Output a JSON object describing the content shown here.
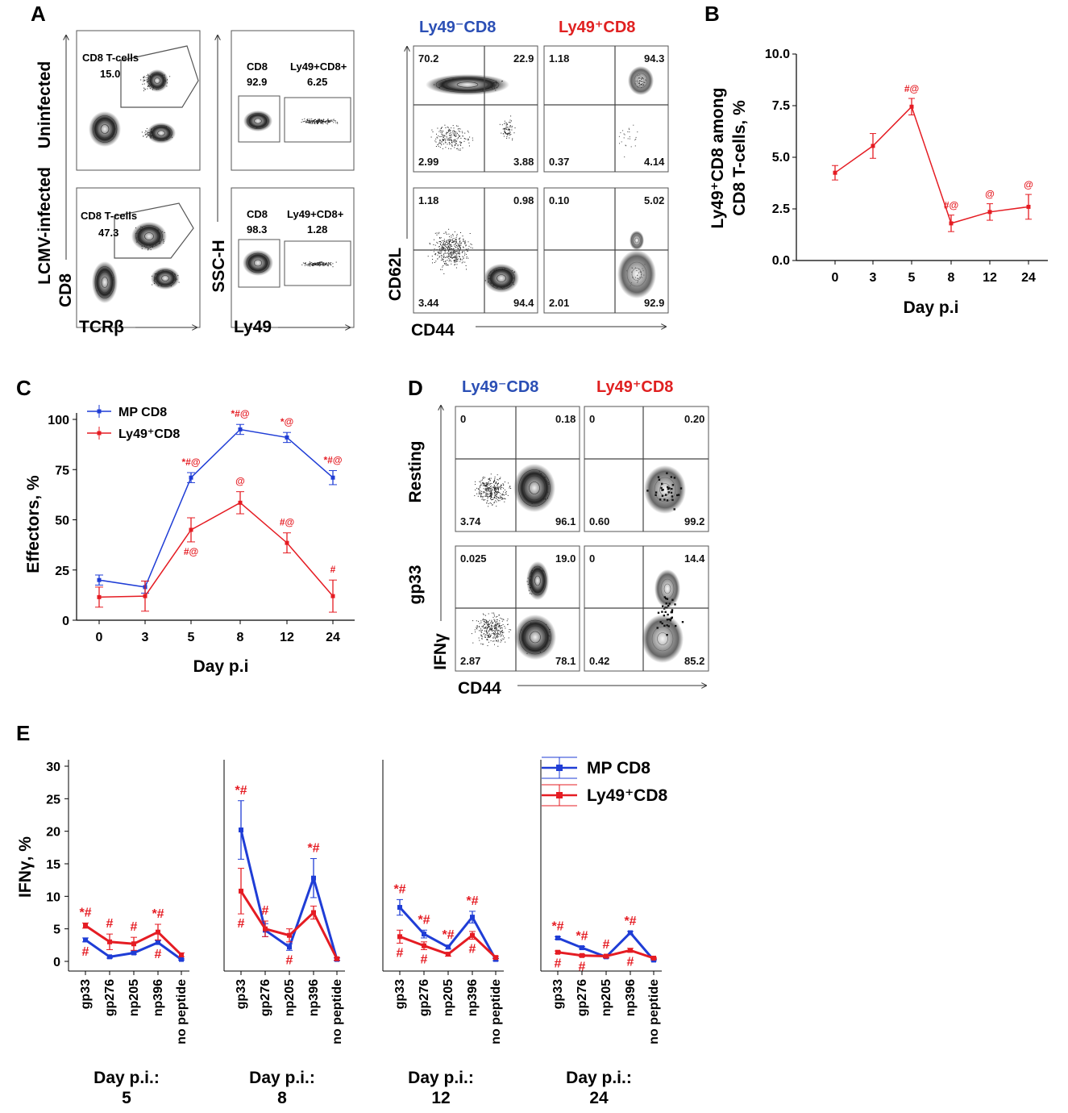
{
  "panel_letters": [
    "A",
    "B",
    "C",
    "D",
    "E"
  ],
  "colors": {
    "blue": "#1f3dd6",
    "red": "#e51c23",
    "title_blue": "#2b4fb5",
    "title_red": "#e02020"
  },
  "panel_a": {
    "row_labels": [
      "Uninfected",
      "LCMV-infected"
    ],
    "gate_cd8_label": "CD8 T-cells",
    "gate_cd8_values": [
      "15.0",
      "47.3"
    ],
    "col1_axes": {
      "y": "CD8",
      "x": "TCRβ"
    },
    "col2_axes": {
      "y": "SSC-H",
      "x": "Ly49"
    },
    "col2_gate_labels": [
      "CD8",
      "Ly49+CD8+"
    ],
    "col2_values": [
      [
        "92.9",
        "6.25"
      ],
      [
        "98.3",
        "1.28"
      ]
    ],
    "title_neg": "Ly49⁻CD8",
    "title_pos": "Ly49⁺CD8",
    "quad_axes": {
      "y": "CD62L",
      "x": "CD44"
    },
    "quadrants": [
      [
        [
          "70.2",
          "22.9",
          "2.99",
          "3.88"
        ],
        [
          "1.18",
          "94.3",
          "0.37",
          "4.14"
        ]
      ],
      [
        [
          "1.18",
          "0.98",
          "3.44",
          "94.4"
        ],
        [
          "0.10",
          "5.02",
          "2.01",
          "92.9"
        ]
      ]
    ]
  },
  "panel_d": {
    "title_neg": "Ly49⁻CD8",
    "title_pos": "Ly49⁺CD8",
    "row_labels": [
      "Resting",
      "gp33"
    ],
    "axes": {
      "y": "IFNγ",
      "x": "CD44"
    },
    "quadrants": [
      [
        [
          "0",
          "0.18",
          "3.74",
          "96.1"
        ],
        [
          "0",
          "0.20",
          "0.60",
          "99.2"
        ]
      ],
      [
        [
          "0.025",
          "19.0",
          "2.87",
          "78.1"
        ],
        [
          "0",
          "14.4",
          "0.42",
          "85.2"
        ]
      ]
    ]
  },
  "chart_data": [
    {
      "panel": "B",
      "type": "line",
      "categories": [
        "0",
        "3",
        "5",
        "8",
        "12",
        "24"
      ],
      "series": [
        {
          "name": "Ly49+CD8",
          "values": [
            4.25,
            5.55,
            7.45,
            1.8,
            2.35,
            2.6
          ],
          "errors": [
            0.35,
            0.6,
            0.4,
            0.4,
            0.4,
            0.6
          ],
          "color": "#e51c23"
        }
      ],
      "annotations": [
        "",
        "",
        "#@",
        "#@",
        "@",
        "@"
      ],
      "ylabel_line1": "Ly49⁺CD8 among",
      "ylabel_line2": "CD8 T-cells, %",
      "xlabel": "Day p.i",
      "ylim": [
        0,
        10
      ],
      "yticks": [
        "0.0",
        "2.5",
        "5.0",
        "7.5",
        "10.0"
      ]
    },
    {
      "panel": "C",
      "type": "line",
      "categories": [
        "0",
        "3",
        "5",
        "8",
        "12",
        "24"
      ],
      "series": [
        {
          "name": "MP CD8",
          "values": [
            20,
            16.5,
            71,
            95,
            91,
            71
          ],
          "errors": [
            2.5,
            3,
            2.5,
            2.5,
            2.5,
            3.5
          ],
          "color": "#1f3dd6"
        },
        {
          "name": "Ly49⁺CD8",
          "values": [
            11.5,
            12,
            45,
            58.5,
            38.5,
            12
          ],
          "errors": [
            5,
            7.5,
            6,
            5.5,
            5,
            8
          ],
          "color": "#e51c23"
        }
      ],
      "annotations_top": [
        "",
        "",
        "*#@",
        "*#@",
        "*@",
        "*#@"
      ],
      "annotations_bottom": [
        "",
        "",
        "#@",
        "@",
        "#@",
        "#"
      ],
      "ylabel": "Effectors, %",
      "xlabel": "Day p.i",
      "ylim": [
        0,
        100
      ],
      "yticks": [
        "0",
        "25",
        "50",
        "75",
        "100"
      ],
      "legend": [
        "MP CD8",
        "Ly49⁺CD8"
      ]
    },
    {
      "panel": "E",
      "type": "line",
      "ylabel": "IFNγ, %",
      "ylim": [
        0,
        30
      ],
      "yticks": [
        "0",
        "5",
        "10",
        "15",
        "20",
        "25",
        "30"
      ],
      "categories": [
        "gp33",
        "gp276",
        "np205",
        "np396",
        "no peptide"
      ],
      "legend": [
        "MP CD8",
        "Ly49⁺CD8"
      ],
      "day_label": "Day p.i.:",
      "subplots": [
        {
          "day": "5",
          "mp": [
            3.3,
            0.7,
            1.3,
            2.9,
            0.3
          ],
          "mp_err": [
            0.3,
            0.2,
            0.2,
            0.3,
            0.1
          ],
          "ly": [
            5.5,
            3.0,
            2.7,
            4.5,
            1.0
          ],
          "ly_err": [
            0.4,
            1.2,
            1.0,
            1.2,
            0.3
          ],
          "ann_top": [
            "*#",
            "#",
            "#",
            "*#",
            ""
          ],
          "ann_bot": [
            "#",
            "",
            "",
            "#",
            ""
          ]
        },
        {
          "day": "8",
          "mp": [
            20.2,
            4.8,
            2.2,
            12.8,
            0.3
          ],
          "mp_err": [
            4.5,
            1.0,
            0.5,
            3.0,
            0.2
          ],
          "ly": [
            10.8,
            5.0,
            4.0,
            7.5,
            0.4
          ],
          "ly_err": [
            3.5,
            1.2,
            1.0,
            1.0,
            0.2
          ],
          "ann_top": [
            "*#",
            "#",
            "",
            "*#",
            ""
          ],
          "ann_bot": [
            "#",
            "",
            "#",
            "",
            ""
          ]
        },
        {
          "day": "12",
          "mp": [
            8.3,
            4.2,
            2.2,
            6.8,
            0.3
          ],
          "mp_err": [
            1.2,
            0.6,
            0.3,
            0.9,
            0.2
          ],
          "ly": [
            3.8,
            2.4,
            1.1,
            4.0,
            0.6
          ],
          "ly_err": [
            1.0,
            0.6,
            0.3,
            0.6,
            0.2
          ],
          "ann_top": [
            "*#",
            "*#",
            "*#",
            "*#",
            ""
          ],
          "ann_bot": [
            "#",
            "#",
            "",
            "#",
            ""
          ]
        },
        {
          "day": "24",
          "mp": [
            3.6,
            2.1,
            0.7,
            4.4,
            0.2
          ],
          "mp_err": [
            0.2,
            0.2,
            0.2,
            0.2,
            0.1
          ],
          "ly": [
            1.4,
            0.9,
            0.8,
            1.7,
            0.5
          ],
          "ly_err": [
            0.2,
            0.2,
            0.2,
            0.3,
            0.1
          ],
          "ann_top": [
            "*#",
            "*#",
            "#",
            "*#",
            ""
          ],
          "ann_bot": [
            "#",
            "#",
            "",
            "#",
            ""
          ]
        }
      ]
    }
  ]
}
